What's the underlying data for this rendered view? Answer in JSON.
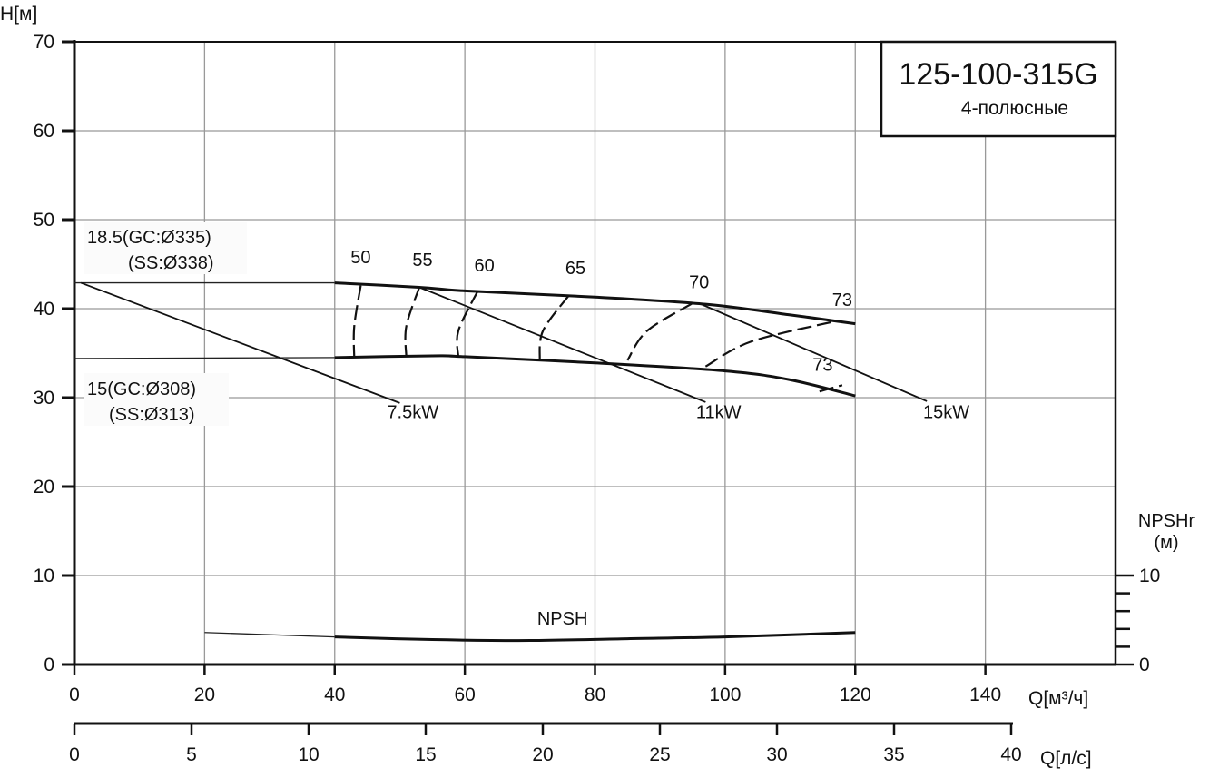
{
  "chart_data": {
    "type": "line",
    "title": "125-100-315G",
    "subtitle": "4-полюсные",
    "ylabel": "H[м]",
    "xlabel": "Q[м³/ч]",
    "x2label": "Q[л/с]",
    "y2label": "NPSHr (м)",
    "xlim": [
      0,
      160
    ],
    "ylim": [
      0,
      70
    ],
    "x2lim": [
      0,
      44.4
    ],
    "grid": true,
    "xticks": [
      0,
      20,
      40,
      60,
      80,
      100,
      120,
      140
    ],
    "yticks": [
      0,
      10,
      20,
      30,
      40,
      50,
      60,
      70
    ],
    "x2ticks": [
      0,
      5,
      10,
      15,
      20,
      25,
      30,
      35,
      40
    ],
    "y2ticks": [
      0,
      10
    ],
    "impeller_curves": [
      {
        "name": "18.5(GC:Ø335)",
        "name2": "(SS:Ø338)",
        "thin": [
          [
            0,
            42.9
          ],
          [
            40,
            42.9
          ]
        ],
        "points": [
          [
            40,
            42.9
          ],
          [
            53,
            42.4
          ],
          [
            60,
            42.0
          ],
          [
            80,
            41.3
          ],
          [
            97,
            40.5
          ],
          [
            110,
            39.3
          ],
          [
            120,
            38.3
          ]
        ]
      },
      {
        "name": "15(GC:Ø308)",
        "name2": "(SS:Ø313)",
        "thin": [
          [
            0,
            34.4
          ],
          [
            40,
            34.5
          ]
        ],
        "points": [
          [
            40,
            34.5
          ],
          [
            55,
            34.7
          ],
          [
            60,
            34.6
          ],
          [
            80,
            33.9
          ],
          [
            100,
            33.0
          ],
          [
            110,
            32.0
          ],
          [
            120,
            30.2
          ]
        ]
      }
    ],
    "power_lines": [
      {
        "name": "7.5kW",
        "points": [
          [
            1,
            42.9
          ],
          [
            50,
            29.4
          ]
        ]
      },
      {
        "name": "11kW",
        "points": [
          [
            53,
            42.4
          ],
          [
            97,
            29.5
          ]
        ]
      },
      {
        "name": "15kW",
        "points": [
          [
            96,
            40.6
          ],
          [
            131,
            29.6
          ]
        ]
      }
    ],
    "efficiency_curves": [
      {
        "name": "50",
        "points": [
          [
            44,
            42.6
          ],
          [
            43,
            38
          ],
          [
            43,
            34.5
          ]
        ]
      },
      {
        "name": "55",
        "points": [
          [
            53,
            42.4
          ],
          [
            51,
            38
          ],
          [
            51,
            34.6
          ]
        ]
      },
      {
        "name": "60",
        "points": [
          [
            62,
            42.0
          ],
          [
            59,
            37.5
          ],
          [
            59,
            34.6
          ]
        ]
      },
      {
        "name": "65",
        "points": [
          [
            76,
            41.5
          ],
          [
            72,
            37.5
          ],
          [
            71.5,
            34.2
          ]
        ]
      },
      {
        "name": "70",
        "points": [
          [
            95,
            40.6
          ],
          [
            88,
            37.5
          ],
          [
            85,
            34.2
          ]
        ]
      },
      {
        "name": "73",
        "points": [
          [
            97,
            33.5
          ],
          [
            104,
            36.3
          ],
          [
            117,
            38.6
          ]
        ]
      },
      {
        "name": "73",
        "points": [
          [
            114.5,
            30.7
          ],
          [
            118,
            31.4
          ]
        ]
      }
    ],
    "npsh": {
      "name": "NPSH",
      "thin": [
        [
          20,
          3.6
        ],
        [
          40,
          3.1
        ]
      ],
      "points": [
        [
          40,
          3.1
        ],
        [
          55,
          2.8
        ],
        [
          70,
          2.7
        ],
        [
          85,
          2.9
        ],
        [
          100,
          3.1
        ],
        [
          120,
          3.6
        ]
      ]
    }
  }
}
